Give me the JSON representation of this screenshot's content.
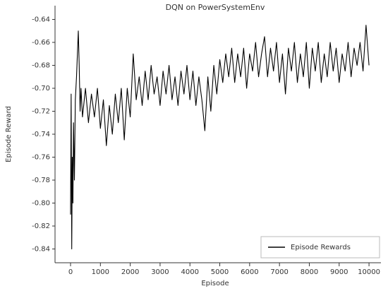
{
  "chart_data": {
    "type": "line",
    "title": "DQN on PowerSystemEnv",
    "x_label": "Episode",
    "y_label": "Episode Reward",
    "xlim": [
      -520,
      10400
    ],
    "ylim": [
      -0.852,
      -0.628
    ],
    "xticks": [
      0,
      1000,
      2000,
      3000,
      4000,
      5000,
      6000,
      7000,
      8000,
      9000,
      10000
    ],
    "yticks": [
      -0.84,
      -0.82,
      {
        "value": -0.8,
        "label": "-0.80"
      },
      -0.78,
      -0.76,
      -0.74,
      -0.72,
      {
        "value": -0.7,
        "label": "-0.70"
      },
      -0.68,
      -0.66,
      -0.64
    ],
    "grid": false,
    "legend": "lower right",
    "x": [
      0,
      20,
      40,
      60,
      80,
      100,
      130,
      160,
      200,
      230,
      260,
      290,
      320,
      350,
      400,
      500,
      600,
      700,
      800,
      900,
      1000,
      1100,
      1200,
      1300,
      1400,
      1500,
      1600,
      1700,
      1800,
      1900,
      2000,
      2100,
      2200,
      2300,
      2400,
      2500,
      2600,
      2700,
      2800,
      2900,
      3000,
      3100,
      3200,
      3300,
      3400,
      3500,
      3600,
      3700,
      3800,
      3900,
      4000,
      4100,
      4200,
      4300,
      4400,
      4500,
      4600,
      4700,
      4800,
      4900,
      5000,
      5100,
      5200,
      5300,
      5400,
      5500,
      5600,
      5700,
      5800,
      5900,
      6000,
      6100,
      6200,
      6300,
      6400,
      6500,
      6600,
      6700,
      6800,
      6900,
      7000,
      7100,
      7200,
      7300,
      7400,
      7500,
      7600,
      7700,
      7800,
      7900,
      8000,
      8100,
      8200,
      8300,
      8400,
      8500,
      8600,
      8700,
      8800,
      8900,
      9000,
      9100,
      9200,
      9300,
      9400,
      9500,
      9600,
      9700,
      9800,
      9900,
      10000
    ],
    "series": [
      {
        "name": "Episode Rewards",
        "color": "#000000",
        "values": [
          -0.81,
          -0.705,
          -0.84,
          -0.76,
          -0.8,
          -0.73,
          -0.78,
          -0.71,
          -0.69,
          -0.67,
          -0.65,
          -0.68,
          -0.72,
          -0.7,
          -0.725,
          -0.7,
          -0.73,
          -0.705,
          -0.725,
          -0.7,
          -0.735,
          -0.71,
          -0.75,
          -0.715,
          -0.74,
          -0.705,
          -0.73,
          -0.7,
          -0.745,
          -0.7,
          -0.725,
          -0.67,
          -0.71,
          -0.69,
          -0.715,
          -0.685,
          -0.71,
          -0.68,
          -0.705,
          -0.69,
          -0.715,
          -0.685,
          -0.705,
          -0.68,
          -0.71,
          -0.69,
          -0.715,
          -0.685,
          -0.705,
          -0.68,
          -0.71,
          -0.685,
          -0.715,
          -0.69,
          -0.71,
          -0.737,
          -0.69,
          -0.72,
          -0.68,
          -0.705,
          -0.675,
          -0.695,
          -0.67,
          -0.69,
          -0.665,
          -0.695,
          -0.67,
          -0.69,
          -0.665,
          -0.7,
          -0.67,
          -0.685,
          -0.66,
          -0.69,
          -0.67,
          -0.655,
          -0.69,
          -0.665,
          -0.685,
          -0.66,
          -0.695,
          -0.67,
          -0.705,
          -0.665,
          -0.685,
          -0.66,
          -0.695,
          -0.67,
          -0.69,
          -0.66,
          -0.7,
          -0.665,
          -0.685,
          -0.66,
          -0.695,
          -0.67,
          -0.69,
          -0.66,
          -0.685,
          -0.665,
          -0.695,
          -0.67,
          -0.685,
          -0.66,
          -0.69,
          -0.665,
          -0.68,
          -0.66,
          -0.685,
          -0.645,
          -0.68
        ]
      }
    ]
  }
}
